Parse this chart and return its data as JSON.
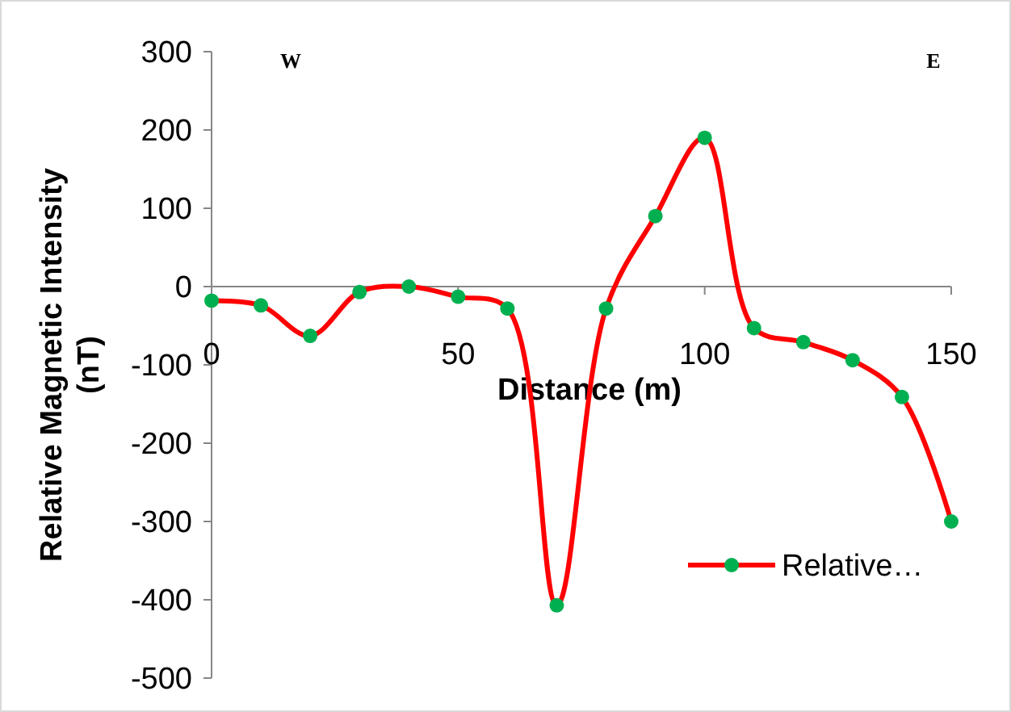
{
  "chart_data": {
    "type": "line",
    "xlabel": "Distance (m)",
    "ylabel": "Relative Magnetic Intensity (nT)",
    "annotations": [
      "W",
      "E"
    ],
    "x": [
      0,
      10,
      20,
      30,
      40,
      50,
      60,
      70,
      80,
      90,
      100,
      110,
      120,
      130,
      140,
      150
    ],
    "series": [
      {
        "name": "Relative…",
        "color": "#ff0000",
        "values": [
          -18,
          -24,
          -63,
          -7,
          0,
          -13,
          -28,
          -407,
          -28,
          90,
          190,
          -53,
          -71,
          -94,
          -141,
          -300
        ]
      }
    ],
    "xlim": [
      0,
      150
    ],
    "xticks": [
      0,
      50,
      100,
      150
    ],
    "ylim": [
      -500,
      300
    ],
    "yticks": [
      -500,
      -400,
      -300,
      -200,
      -100,
      0,
      100,
      200,
      300
    ],
    "marker": "circle",
    "line_style": "solid",
    "grid": false,
    "legend": "bottom right"
  }
}
